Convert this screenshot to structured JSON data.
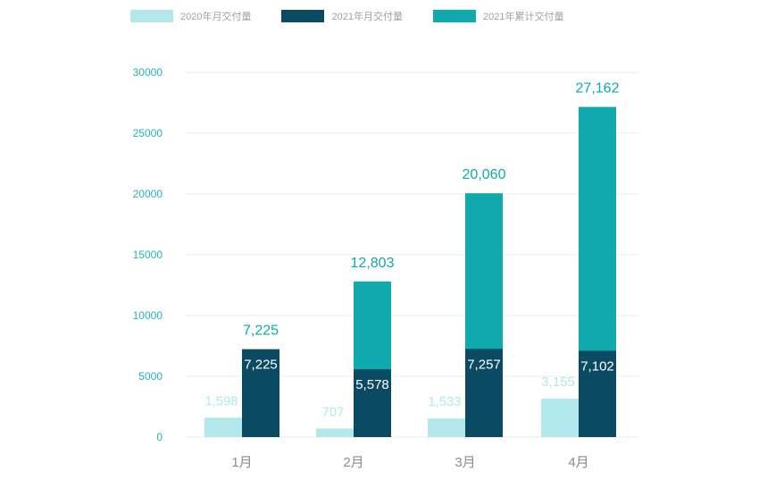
{
  "colors": {
    "series_2020": "#b2e8ec",
    "series_2021": "#0b4a63",
    "series_cumulative": "#10a9ad",
    "axis_text": "#26b3b6",
    "grid": "#ececec",
    "category_text": "#8c8c8c"
  },
  "legend": [
    {
      "label": "2020年月交付量",
      "color_key": "series_2020"
    },
    {
      "label": "2021年月交付量",
      "color_key": "series_2021"
    },
    {
      "label": "2021年累计交付量",
      "color_key": "series_cumulative"
    }
  ],
  "chart_data": {
    "type": "bar",
    "categories": [
      "1月",
      "2月",
      "3月",
      "4月"
    ],
    "series": [
      {
        "name": "2020年月交付量",
        "values": [
          1598,
          707,
          1533,
          3155
        ]
      },
      {
        "name": "2021年月交付量",
        "values": [
          7225,
          5578,
          7257,
          7102
        ]
      },
      {
        "name": "2021年累计交付量",
        "values": [
          7225,
          12803,
          20060,
          27162
        ]
      }
    ],
    "value_labels": {
      "series_2020": [
        "1,598",
        "707",
        "1,533",
        "3,155"
      ],
      "series_2021": [
        "7,225",
        "5,578",
        "7,257",
        "7,102"
      ],
      "cumulative": [
        "7,225",
        "12,803",
        "20,060",
        "27,162"
      ]
    },
    "ylim": [
      0,
      30000
    ],
    "y_ticks": [
      0,
      5000,
      10000,
      15000,
      20000,
      25000,
      30000
    ],
    "grid": true,
    "legend_position": "top",
    "stacked_note": "2021年累计 bar drawn behind 2021年月 bar"
  }
}
